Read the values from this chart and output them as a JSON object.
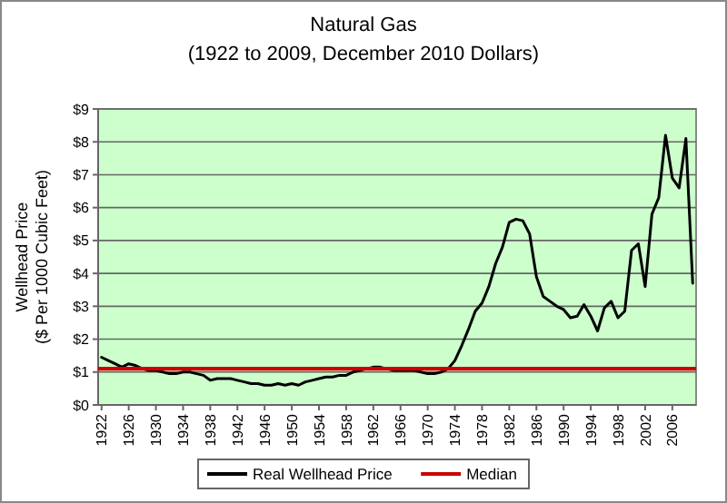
{
  "chart_data": {
    "type": "line",
    "title": "Natural Gas",
    "subtitle": "(1922 to 2009, December 2010 Dollars)",
    "ylabel": "Wellhead Price\n($ Per 1000 Cubic Feet)",
    "categories": [
      "1922",
      null,
      null,
      null,
      "1926",
      null,
      null,
      null,
      "1930",
      null,
      null,
      null,
      "1934",
      null,
      null,
      null,
      "1938",
      null,
      null,
      null,
      "1942",
      null,
      null,
      null,
      "1946",
      null,
      null,
      null,
      "1950",
      null,
      null,
      null,
      "1954",
      null,
      null,
      null,
      "1958",
      null,
      null,
      null,
      "1962",
      null,
      null,
      null,
      "1966",
      null,
      null,
      null,
      "1970",
      null,
      null,
      null,
      "1974",
      null,
      null,
      null,
      "1978",
      null,
      null,
      null,
      "1982",
      null,
      null,
      null,
      "1986",
      null,
      null,
      null,
      "1990",
      null,
      null,
      null,
      "1994",
      null,
      null,
      null,
      "1998",
      null,
      null,
      null,
      "2002",
      null,
      null,
      null,
      "2006",
      null,
      null,
      null
    ],
    "series": [
      {
        "name": "Real Wellhead Price",
        "color": "#000000",
        "values": [
          1.45,
          1.35,
          1.25,
          1.15,
          1.25,
          1.2,
          1.1,
          1.05,
          1.05,
          1.0,
          0.95,
          0.95,
          1.0,
          1.0,
          0.95,
          0.9,
          0.75,
          0.8,
          0.8,
          0.8,
          0.75,
          0.7,
          0.65,
          0.65,
          0.6,
          0.6,
          0.65,
          0.6,
          0.65,
          0.6,
          0.7,
          0.75,
          0.8,
          0.85,
          0.85,
          0.9,
          0.9,
          1.0,
          1.05,
          1.1,
          1.15,
          1.15,
          1.1,
          1.05,
          1.05,
          1.05,
          1.05,
          1.0,
          0.95,
          0.95,
          1.0,
          1.1,
          1.35,
          1.8,
          2.3,
          2.85,
          3.1,
          3.6,
          4.3,
          4.8,
          5.55,
          5.65,
          5.6,
          5.2,
          3.9,
          3.3,
          3.15,
          3.0,
          2.9,
          2.65,
          2.7,
          3.05,
          2.7,
          2.25,
          2.95,
          3.15,
          2.65,
          2.85,
          4.7,
          4.9,
          3.6,
          5.8,
          6.3,
          8.2,
          6.9,
          6.6,
          8.1,
          3.7
        ]
      }
    ],
    "ref_lines": [
      {
        "axis": "y",
        "value": 1.1,
        "label": "Median",
        "color": "#cc0000"
      }
    ],
    "ylim": [
      0,
      9
    ],
    "yticks": [
      {
        "value": 0,
        "label": "$0"
      },
      {
        "value": 1,
        "label": "$1"
      },
      {
        "value": 2,
        "label": "$2"
      },
      {
        "value": 3,
        "label": "$3"
      },
      {
        "value": 4,
        "label": "$4"
      },
      {
        "value": 5,
        "label": "$5"
      },
      {
        "value": 6,
        "label": "$6"
      },
      {
        "value": 7,
        "label": "$7"
      },
      {
        "value": 8,
        "label": "$8"
      },
      {
        "value": 9,
        "label": "$9"
      }
    ],
    "grid": "y",
    "legend": "bottom"
  }
}
